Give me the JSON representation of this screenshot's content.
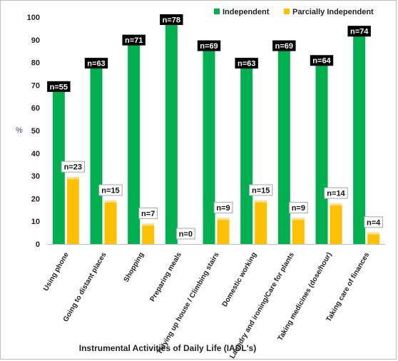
{
  "chart_data": {
    "type": "bar",
    "title": "",
    "xlabel": "Instrumental Activities of Daily Life (IADL's)",
    "ylabel": "%",
    "ylim": [
      0,
      100
    ],
    "yticks": [
      0,
      10,
      20,
      30,
      40,
      50,
      60,
      70,
      80,
      90,
      100
    ],
    "grid": false,
    "legend_position": "top-right",
    "categories": [
      "Using phone",
      "Going to distant places",
      "Shopping",
      "Preparing meals",
      "Tidying up house / Climbing stairs",
      "Domestic working",
      "Laundry and ironing/Care for plants",
      "Taking medicines (dose/hour)",
      "Taking care of finances"
    ],
    "series": [
      {
        "name": "Independent",
        "color": "#00b050",
        "values": [
          70.5,
          80.8,
          91.0,
          100.0,
          88.5,
          80.8,
          88.5,
          82.0,
          94.9
        ],
        "labels": [
          "n=55",
          "n=63",
          "n=71",
          "n=78",
          "n=69",
          "n=63",
          "n=69",
          "n=64",
          "n=74"
        ]
      },
      {
        "name": "Parcially Independent",
        "color": "#ffc000",
        "values": [
          29.5,
          19.2,
          9.0,
          0,
          11.5,
          19.2,
          11.5,
          17.9,
          5.1
        ],
        "labels": [
          "n=23",
          "n=15",
          "n=7",
          "n=0",
          "n=9",
          "n=15",
          "n=9",
          "n=14",
          "n=4"
        ]
      }
    ]
  }
}
